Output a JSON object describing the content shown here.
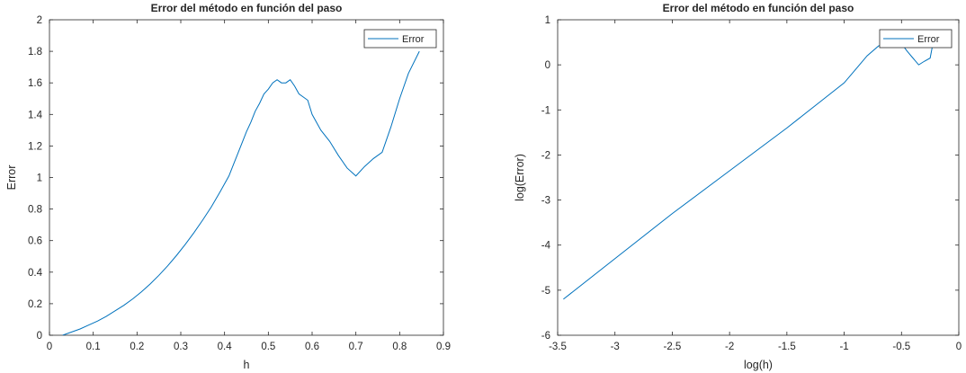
{
  "chart_data": [
    {
      "type": "line",
      "title": "Error del método en función del paso",
      "xlabel": "h",
      "ylabel": "Error",
      "xlim": [
        0,
        0.9
      ],
      "ylim": [
        0,
        2
      ],
      "xticks": [
        "0",
        "0.1",
        "0.2",
        "0.3",
        "0.4",
        "0.5",
        "0.6",
        "0.7",
        "0.8",
        "0.9"
      ],
      "yticks": [
        "0",
        "0.2",
        "0.4",
        "0.6",
        "0.8",
        "1",
        "1.2",
        "1.4",
        "1.6",
        "1.8",
        "2"
      ],
      "grid": false,
      "legend": "top-right",
      "series": [
        {
          "name": "Error",
          "color": "#0072BD",
          "x": [
            0.03,
            0.05,
            0.07,
            0.09,
            0.11,
            0.13,
            0.15,
            0.17,
            0.19,
            0.21,
            0.23,
            0.25,
            0.27,
            0.29,
            0.31,
            0.33,
            0.35,
            0.37,
            0.39,
            0.41,
            0.42,
            0.43,
            0.44,
            0.45,
            0.46,
            0.47,
            0.48,
            0.49,
            0.5,
            0.51,
            0.52,
            0.53,
            0.54,
            0.55,
            0.56,
            0.57,
            0.58,
            0.59,
            0.6,
            0.62,
            0.64,
            0.66,
            0.68,
            0.7,
            0.72,
            0.74,
            0.76,
            0.78,
            0.8,
            0.82,
            0.845
          ],
          "y": [
            0.0,
            0.02,
            0.04,
            0.065,
            0.09,
            0.12,
            0.155,
            0.19,
            0.23,
            0.275,
            0.325,
            0.38,
            0.44,
            0.505,
            0.575,
            0.65,
            0.73,
            0.815,
            0.91,
            1.01,
            1.08,
            1.15,
            1.22,
            1.29,
            1.35,
            1.42,
            1.47,
            1.53,
            1.56,
            1.6,
            1.62,
            1.6,
            1.6,
            1.62,
            1.58,
            1.53,
            1.51,
            1.49,
            1.4,
            1.3,
            1.23,
            1.14,
            1.06,
            1.01,
            1.07,
            1.12,
            1.16,
            1.32,
            1.5,
            1.66,
            1.8
          ]
        }
      ]
    },
    {
      "type": "line",
      "title": "Error del método en función del paso",
      "xlabel": "log(h)",
      "ylabel": "log(Error)",
      "xlim": [
        -3.5,
        0
      ],
      "ylim": [
        -6,
        1
      ],
      "xticks": [
        "-3.5",
        "-3",
        "-2.5",
        "-2",
        "-1.5",
        "-1",
        "-0.5",
        "0"
      ],
      "yticks": [
        "-6",
        "-5",
        "-4",
        "-3",
        "-2",
        "-1",
        "0",
        "1"
      ],
      "grid": false,
      "legend": "top-right",
      "series": [
        {
          "name": "Error",
          "color": "#0072BD",
          "x": [
            -3.45,
            -3.0,
            -2.5,
            -2.0,
            -1.5,
            -1.2,
            -1.0,
            -0.9,
            -0.8,
            -0.7,
            -0.6,
            -0.55,
            -0.5,
            -0.45,
            -0.4,
            -0.35,
            -0.3,
            -0.25,
            -0.22
          ],
          "y": [
            -5.2,
            -4.3,
            -3.3,
            -2.35,
            -1.4,
            -0.8,
            -0.4,
            -0.1,
            0.2,
            0.42,
            0.5,
            0.5,
            0.47,
            0.3,
            0.15,
            0.0,
            0.08,
            0.15,
            0.55
          ]
        }
      ]
    }
  ]
}
